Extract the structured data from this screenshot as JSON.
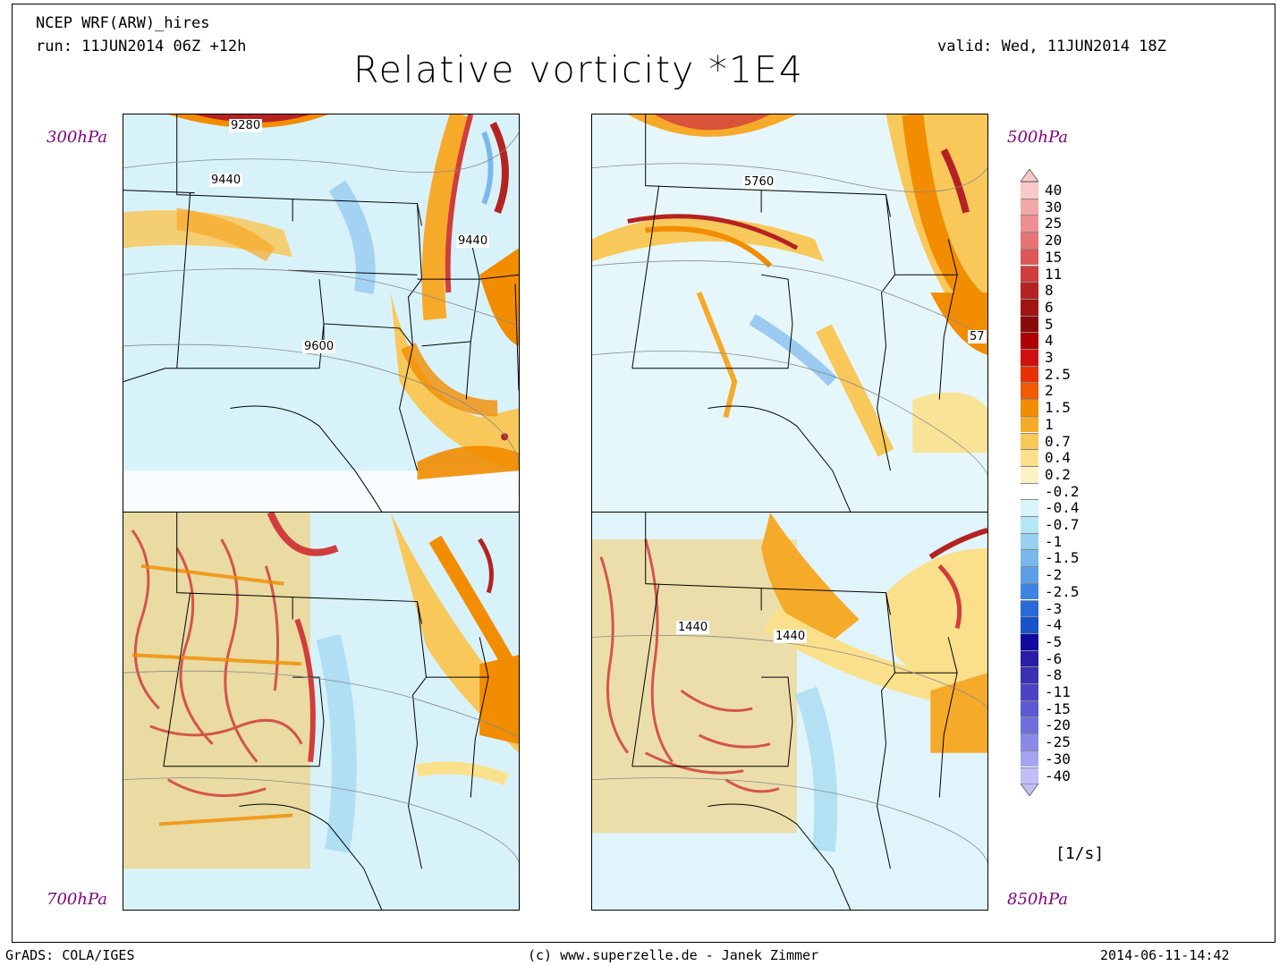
{
  "header": {
    "model": "NCEP WRF(ARW)_hires",
    "run": "run: 11JUN2014 06Z +12h",
    "valid": "valid: Wed, 11JUN2014 18Z",
    "title": "Relative vorticity *1E4"
  },
  "panels": [
    {
      "id": "p300",
      "level": "300hPa",
      "contour_labels": [
        "9280",
        "9440",
        "9440",
        "9600"
      ]
    },
    {
      "id": "p500",
      "level": "500hPa",
      "contour_labels": [
        "5760",
        "57"
      ]
    },
    {
      "id": "p700",
      "level": "700hPa",
      "contour_labels": []
    },
    {
      "id": "p850",
      "level": "850hPa",
      "contour_labels": [
        "1440",
        "1440"
      ]
    }
  ],
  "colorbar": {
    "ticks": [
      "40",
      "30",
      "25",
      "20",
      "15",
      "11",
      "8",
      "6",
      "5",
      "4",
      "3",
      "2.5",
      "2",
      "1.5",
      "1",
      "0.7",
      "0.4",
      "0.2",
      "-0.2",
      "-0.4",
      "-0.7",
      "-1",
      "-1.5",
      "-2",
      "-2.5",
      "-3",
      "-4",
      "-5",
      "-6",
      "-8",
      "-11",
      "-15",
      "-20",
      "-25",
      "-30",
      "-40"
    ],
    "colors": [
      "#f9c8c8",
      "#f3a8a8",
      "#ee8f8f",
      "#e67474",
      "#dd5757",
      "#d13d3d",
      "#b52222",
      "#a01414",
      "#8a0a0a",
      "#b00000",
      "#d01010",
      "#e83000",
      "#f05a00",
      "#f28c00",
      "#f6aa2a",
      "#f8c85a",
      "#fbe08c",
      "#fdf2c4",
      "#ffffff",
      "#d8f6fa",
      "#b4e6f4",
      "#96d2f0",
      "#7ab8ec",
      "#5c9ee8",
      "#3f84e2",
      "#2a6ad8",
      "#1a52c8",
      "#100aa0",
      "#2a1ea8",
      "#3a30b4",
      "#4a44c0",
      "#5c5ad0",
      "#7070dc",
      "#8a8ae6",
      "#a4a4f0",
      "#c0c0f6"
    ],
    "units": "[1/s]"
  },
  "footer": {
    "left": "GrADS: COLA/IGES",
    "middle": "(c) www.superzelle.de - Janek Zimmer",
    "right": "2014-06-11-14:42"
  }
}
